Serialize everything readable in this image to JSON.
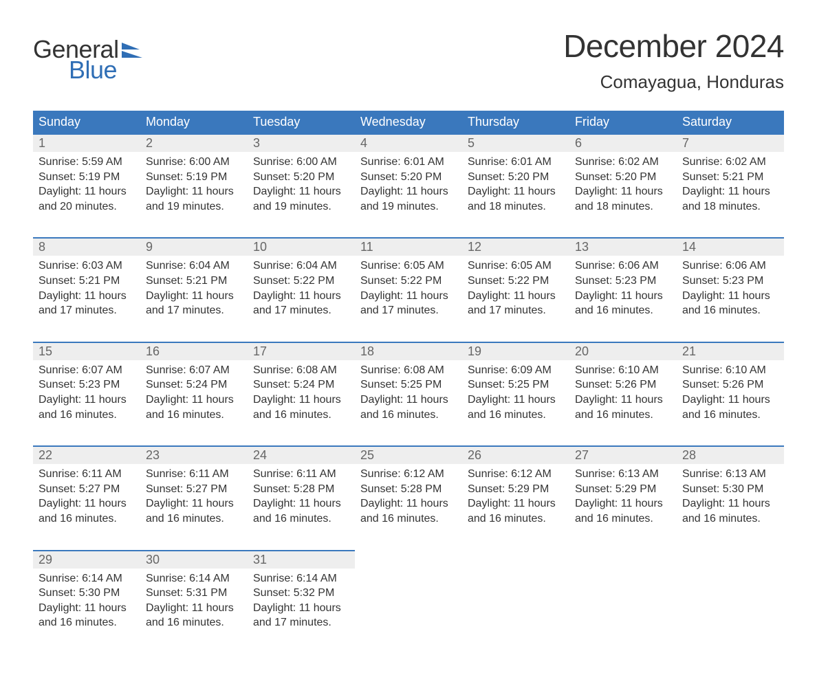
{
  "logo": {
    "word1": "General",
    "word2": "Blue",
    "word1_color": "#333333",
    "word2_color": "#2f6eb5",
    "flag_color": "#2f6eb5"
  },
  "title": "December 2024",
  "location": "Comayagua, Honduras",
  "colors": {
    "header_bg": "#3a78bd",
    "header_text": "#ffffff",
    "cell_border_top": "#3a78bd",
    "daynum_bg": "#eeeeee",
    "daynum_text": "#666666",
    "body_text": "#333333",
    "background": "#ffffff"
  },
  "typography": {
    "title_fontsize": 46,
    "location_fontsize": 26,
    "header_fontsize": 18,
    "daynum_fontsize": 18,
    "details_fontsize": 16,
    "logo_fontsize": 36,
    "font_family": "Arial"
  },
  "calendar": {
    "columns": 7,
    "rows": 5,
    "day_headers": [
      "Sunday",
      "Monday",
      "Tuesday",
      "Wednesday",
      "Thursday",
      "Friday",
      "Saturday"
    ],
    "cells": [
      {
        "day": "1",
        "sunrise": "Sunrise: 5:59 AM",
        "sunset": "Sunset: 5:19 PM",
        "daylight1": "Daylight: 11 hours",
        "daylight2": "and 20 minutes."
      },
      {
        "day": "2",
        "sunrise": "Sunrise: 6:00 AM",
        "sunset": "Sunset: 5:19 PM",
        "daylight1": "Daylight: 11 hours",
        "daylight2": "and 19 minutes."
      },
      {
        "day": "3",
        "sunrise": "Sunrise: 6:00 AM",
        "sunset": "Sunset: 5:20 PM",
        "daylight1": "Daylight: 11 hours",
        "daylight2": "and 19 minutes."
      },
      {
        "day": "4",
        "sunrise": "Sunrise: 6:01 AM",
        "sunset": "Sunset: 5:20 PM",
        "daylight1": "Daylight: 11 hours",
        "daylight2": "and 19 minutes."
      },
      {
        "day": "5",
        "sunrise": "Sunrise: 6:01 AM",
        "sunset": "Sunset: 5:20 PM",
        "daylight1": "Daylight: 11 hours",
        "daylight2": "and 18 minutes."
      },
      {
        "day": "6",
        "sunrise": "Sunrise: 6:02 AM",
        "sunset": "Sunset: 5:20 PM",
        "daylight1": "Daylight: 11 hours",
        "daylight2": "and 18 minutes."
      },
      {
        "day": "7",
        "sunrise": "Sunrise: 6:02 AM",
        "sunset": "Sunset: 5:21 PM",
        "daylight1": "Daylight: 11 hours",
        "daylight2": "and 18 minutes."
      },
      {
        "day": "8",
        "sunrise": "Sunrise: 6:03 AM",
        "sunset": "Sunset: 5:21 PM",
        "daylight1": "Daylight: 11 hours",
        "daylight2": "and 17 minutes."
      },
      {
        "day": "9",
        "sunrise": "Sunrise: 6:04 AM",
        "sunset": "Sunset: 5:21 PM",
        "daylight1": "Daylight: 11 hours",
        "daylight2": "and 17 minutes."
      },
      {
        "day": "10",
        "sunrise": "Sunrise: 6:04 AM",
        "sunset": "Sunset: 5:22 PM",
        "daylight1": "Daylight: 11 hours",
        "daylight2": "and 17 minutes."
      },
      {
        "day": "11",
        "sunrise": "Sunrise: 6:05 AM",
        "sunset": "Sunset: 5:22 PM",
        "daylight1": "Daylight: 11 hours",
        "daylight2": "and 17 minutes."
      },
      {
        "day": "12",
        "sunrise": "Sunrise: 6:05 AM",
        "sunset": "Sunset: 5:22 PM",
        "daylight1": "Daylight: 11 hours",
        "daylight2": "and 17 minutes."
      },
      {
        "day": "13",
        "sunrise": "Sunrise: 6:06 AM",
        "sunset": "Sunset: 5:23 PM",
        "daylight1": "Daylight: 11 hours",
        "daylight2": "and 16 minutes."
      },
      {
        "day": "14",
        "sunrise": "Sunrise: 6:06 AM",
        "sunset": "Sunset: 5:23 PM",
        "daylight1": "Daylight: 11 hours",
        "daylight2": "and 16 minutes."
      },
      {
        "day": "15",
        "sunrise": "Sunrise: 6:07 AM",
        "sunset": "Sunset: 5:23 PM",
        "daylight1": "Daylight: 11 hours",
        "daylight2": "and 16 minutes."
      },
      {
        "day": "16",
        "sunrise": "Sunrise: 6:07 AM",
        "sunset": "Sunset: 5:24 PM",
        "daylight1": "Daylight: 11 hours",
        "daylight2": "and 16 minutes."
      },
      {
        "day": "17",
        "sunrise": "Sunrise: 6:08 AM",
        "sunset": "Sunset: 5:24 PM",
        "daylight1": "Daylight: 11 hours",
        "daylight2": "and 16 minutes."
      },
      {
        "day": "18",
        "sunrise": "Sunrise: 6:08 AM",
        "sunset": "Sunset: 5:25 PM",
        "daylight1": "Daylight: 11 hours",
        "daylight2": "and 16 minutes."
      },
      {
        "day": "19",
        "sunrise": "Sunrise: 6:09 AM",
        "sunset": "Sunset: 5:25 PM",
        "daylight1": "Daylight: 11 hours",
        "daylight2": "and 16 minutes."
      },
      {
        "day": "20",
        "sunrise": "Sunrise: 6:10 AM",
        "sunset": "Sunset: 5:26 PM",
        "daylight1": "Daylight: 11 hours",
        "daylight2": "and 16 minutes."
      },
      {
        "day": "21",
        "sunrise": "Sunrise: 6:10 AM",
        "sunset": "Sunset: 5:26 PM",
        "daylight1": "Daylight: 11 hours",
        "daylight2": "and 16 minutes."
      },
      {
        "day": "22",
        "sunrise": "Sunrise: 6:11 AM",
        "sunset": "Sunset: 5:27 PM",
        "daylight1": "Daylight: 11 hours",
        "daylight2": "and 16 minutes."
      },
      {
        "day": "23",
        "sunrise": "Sunrise: 6:11 AM",
        "sunset": "Sunset: 5:27 PM",
        "daylight1": "Daylight: 11 hours",
        "daylight2": "and 16 minutes."
      },
      {
        "day": "24",
        "sunrise": "Sunrise: 6:11 AM",
        "sunset": "Sunset: 5:28 PM",
        "daylight1": "Daylight: 11 hours",
        "daylight2": "and 16 minutes."
      },
      {
        "day": "25",
        "sunrise": "Sunrise: 6:12 AM",
        "sunset": "Sunset: 5:28 PM",
        "daylight1": "Daylight: 11 hours",
        "daylight2": "and 16 minutes."
      },
      {
        "day": "26",
        "sunrise": "Sunrise: 6:12 AM",
        "sunset": "Sunset: 5:29 PM",
        "daylight1": "Daylight: 11 hours",
        "daylight2": "and 16 minutes."
      },
      {
        "day": "27",
        "sunrise": "Sunrise: 6:13 AM",
        "sunset": "Sunset: 5:29 PM",
        "daylight1": "Daylight: 11 hours",
        "daylight2": "and 16 minutes."
      },
      {
        "day": "28",
        "sunrise": "Sunrise: 6:13 AM",
        "sunset": "Sunset: 5:30 PM",
        "daylight1": "Daylight: 11 hours",
        "daylight2": "and 16 minutes."
      },
      {
        "day": "29",
        "sunrise": "Sunrise: 6:14 AM",
        "sunset": "Sunset: 5:30 PM",
        "daylight1": "Daylight: 11 hours",
        "daylight2": "and 16 minutes."
      },
      {
        "day": "30",
        "sunrise": "Sunrise: 6:14 AM",
        "sunset": "Sunset: 5:31 PM",
        "daylight1": "Daylight: 11 hours",
        "daylight2": "and 16 minutes."
      },
      {
        "day": "31",
        "sunrise": "Sunrise: 6:14 AM",
        "sunset": "Sunset: 5:32 PM",
        "daylight1": "Daylight: 11 hours",
        "daylight2": "and 17 minutes."
      }
    ]
  }
}
